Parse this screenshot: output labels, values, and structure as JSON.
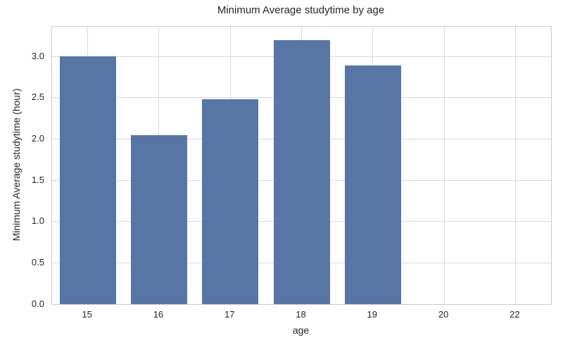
{
  "chart_data": {
    "type": "bar",
    "title": "Minimum Average studytime by age",
    "xlabel": "age",
    "ylabel": "Minimum Average studytime (hour)",
    "categories": [
      "15",
      "16",
      "17",
      "18",
      "19",
      "20",
      "22"
    ],
    "values": [
      3.0,
      2.05,
      2.48,
      3.2,
      2.89,
      0.0,
      0.0
    ],
    "yticks": [
      0.0,
      0.5,
      1.0,
      1.5,
      2.0,
      2.5,
      3.0
    ],
    "ytick_labels": [
      "0.0",
      "0.5",
      "1.0",
      "1.5",
      "2.0",
      "2.5",
      "3.0"
    ],
    "ylim": [
      0,
      3.36
    ],
    "grid": true,
    "legend_position": "none",
    "bar_color": "#5876a5",
    "grid_color": "#d9d9d9",
    "axis_border_color": "#cccccc",
    "text_color": "#262626",
    "background_color": "#ffffff"
  }
}
